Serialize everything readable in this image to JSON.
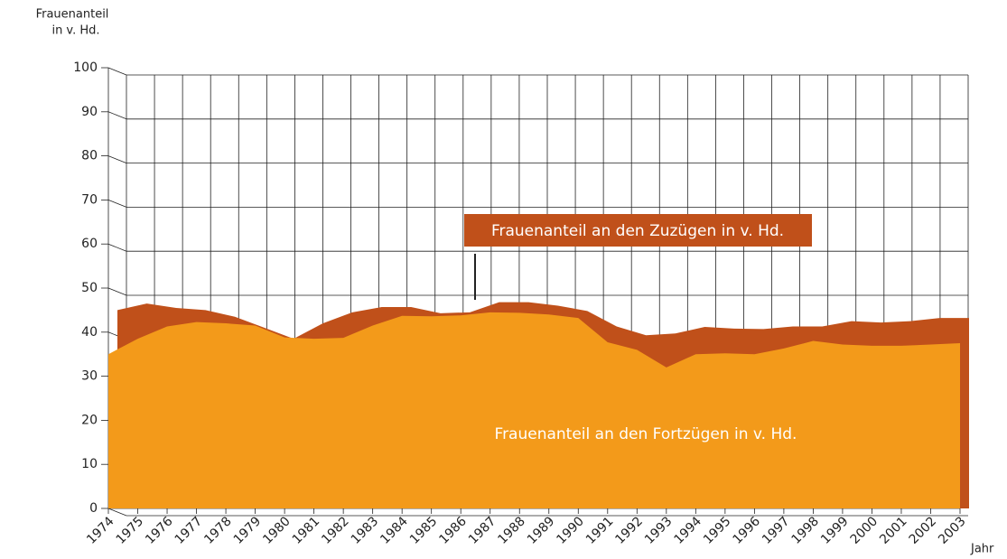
{
  "chart_data": {
    "type": "area",
    "ylabel": [
      "Frauenanteil",
      "in v. Hd."
    ],
    "xlabel": "Jahr",
    "categories": [
      "1974",
      "1975",
      "1976",
      "1977",
      "1978",
      "1979",
      "1980",
      "1981",
      "1982",
      "1983",
      "1984",
      "1985",
      "1986",
      "1987",
      "1988",
      "1989",
      "1990",
      "1991",
      "1992",
      "1993",
      "1994",
      "1995",
      "1996",
      "1997",
      "1998",
      "1999",
      "2000",
      "2001",
      "2002",
      "2003"
    ],
    "series": [
      {
        "name": "Frauenanteil an den Zuzügen in v. Hd.",
        "color": "#c0501a",
        "values": [
          45,
          46.5,
          45.5,
          45,
          43.5,
          41,
          38.5,
          42,
          44.5,
          45.7,
          45.7,
          44.3,
          44.5,
          46.8,
          46.8,
          46,
          44.8,
          41.3,
          39.3,
          39.7,
          41.2,
          40.8,
          40.7,
          41.3,
          41.3,
          42.5,
          42.2,
          42.5,
          43.2,
          43.2
        ]
      },
      {
        "name": "Frauenanteil an den Fortzügen in v. Hd.",
        "color": "#f39a1a",
        "values": [
          35,
          38.5,
          41.3,
          42.3,
          42,
          41.5,
          38.8,
          38.5,
          38.7,
          41.5,
          43.7,
          43.6,
          43.8,
          44.5,
          44.4,
          44,
          43.2,
          37.7,
          36,
          32,
          35,
          35.2,
          35,
          36.3,
          38,
          37.2,
          36.9,
          36.9,
          37.2,
          37.5
        ]
      }
    ],
    "ylim": [
      0,
      100
    ],
    "yticks": [
      0,
      10,
      20,
      30,
      40,
      50,
      60,
      70,
      80,
      90,
      100
    ],
    "grid": true
  }
}
